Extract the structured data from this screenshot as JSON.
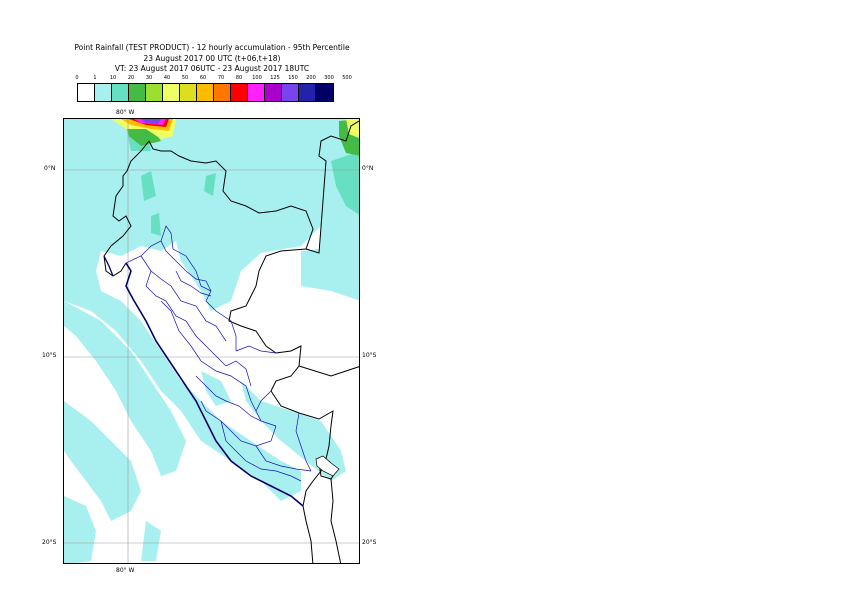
{
  "title_line1": "Point Rainfall (TEST PRODUCT) - 12 hourly accumulation - 95th Percentile",
  "title_line2": "23 August 2017 00 UTC (t+06,t+18)",
  "title_line3": "VT: 23 August 2017 06UTC - 23 August 2017 18UTC",
  "legend": {
    "thresholds": [
      "0",
      "1",
      "10",
      "20",
      "30",
      "40",
      "50",
      "60",
      "70",
      "80",
      "100",
      "125",
      "150",
      "200",
      "300",
      "500"
    ],
    "colors": [
      "#ffffff",
      "#a8f0f0",
      "#66e0c0",
      "#44bb44",
      "#99e033",
      "#eeff66",
      "#dddd22",
      "#ffbb00",
      "#ff7700",
      "#ff0000",
      "#ff22ff",
      "#aa00cc",
      "#7744ee",
      "#2222aa",
      "#000066"
    ]
  },
  "map": {
    "lon_labels": [
      "80° W",
      "80° W"
    ],
    "lat_labels": [
      "0°N",
      "0°N",
      "10°S",
      "10°S",
      "20°S",
      "20°S"
    ]
  }
}
